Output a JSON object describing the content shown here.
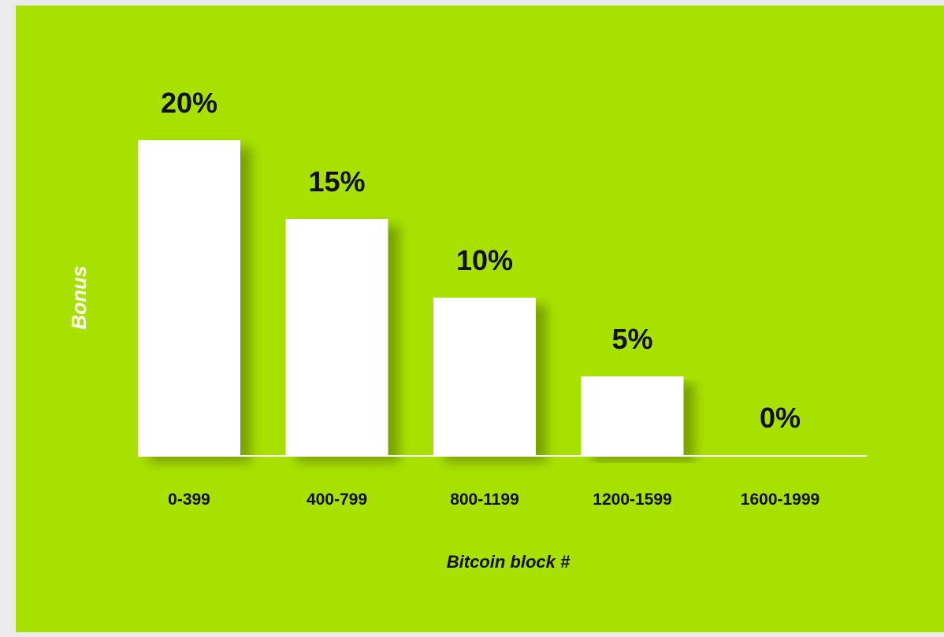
{
  "chart_data": {
    "type": "bar",
    "categories": [
      "0-399",
      "400-799",
      "800-1199",
      "1200-1599",
      "1600-1999"
    ],
    "values": [
      20,
      15,
      10,
      5,
      0
    ],
    "data_labels": [
      "20%",
      "15%",
      "10%",
      "5%",
      "0%"
    ],
    "xlabel": "Bitcoin block #",
    "ylabel": "Bonus",
    "ylim": [
      0,
      20
    ],
    "grid": false,
    "legend": "none",
    "colors": {
      "background": "#a8e000",
      "bar": "#ffffff",
      "axis": "#ffffff",
      "label": "#111111",
      "ylabel": "#ffffff"
    }
  }
}
